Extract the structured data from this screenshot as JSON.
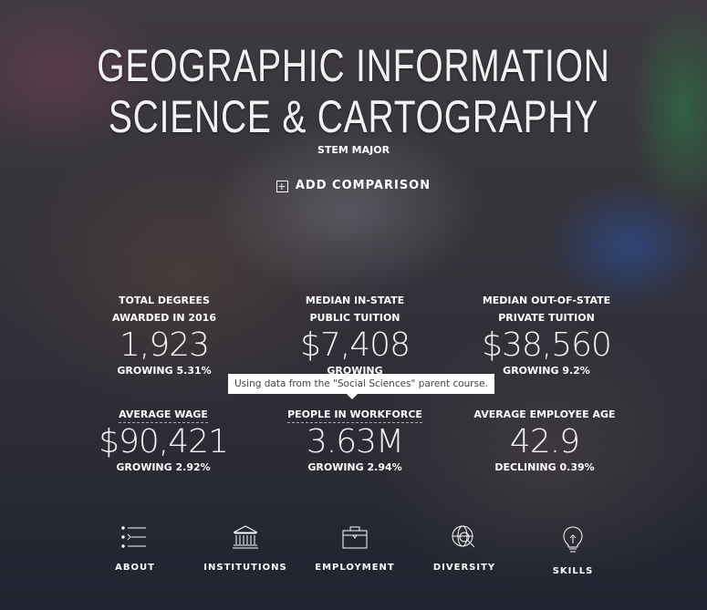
{
  "header": {
    "title": "GEOGRAPHIC INFORMATION SCIENCE & CARTOGRAPHY",
    "subtitle": "STEM MAJOR",
    "add_comparison": "ADD COMPARISON"
  },
  "stats": [
    {
      "label1": "TOTAL DEGREES",
      "label2": "AWARDED IN 2016",
      "value": "1,923",
      "change": "GROWING 5.31%"
    },
    {
      "label1": "MEDIAN IN-STATE",
      "label2": "PUBLIC TUITION",
      "value": "$7,408",
      "change": "GROWING"
    },
    {
      "label1": "MEDIAN OUT-OF-STATE",
      "label2": "PRIVATE TUITION",
      "value": "$38,560",
      "change": "GROWING 9.2%"
    },
    {
      "label1": "AVERAGE WAGE",
      "value": "$90,421",
      "change": "GROWING 2.92%"
    },
    {
      "label1": "PEOPLE IN WORKFORCE",
      "value": "3.63M",
      "change": "GROWING 2.94%"
    },
    {
      "label1": "AVERAGE EMPLOYEE AGE",
      "value": "42.9",
      "change": "DECLINING 0.39%"
    }
  ],
  "tooltip": "Using data from the \"Social Sciences\" parent course.",
  "nav": [
    {
      "label": "ABOUT",
      "icon": "list-icon"
    },
    {
      "label": "INSTITUTIONS",
      "icon": "institution-icon"
    },
    {
      "label": "EMPLOYMENT",
      "icon": "briefcase-icon"
    },
    {
      "label": "DIVERSITY",
      "icon": "globe-search-icon"
    },
    {
      "label": "SKILLS",
      "icon": "lightbulb-head-icon"
    }
  ]
}
